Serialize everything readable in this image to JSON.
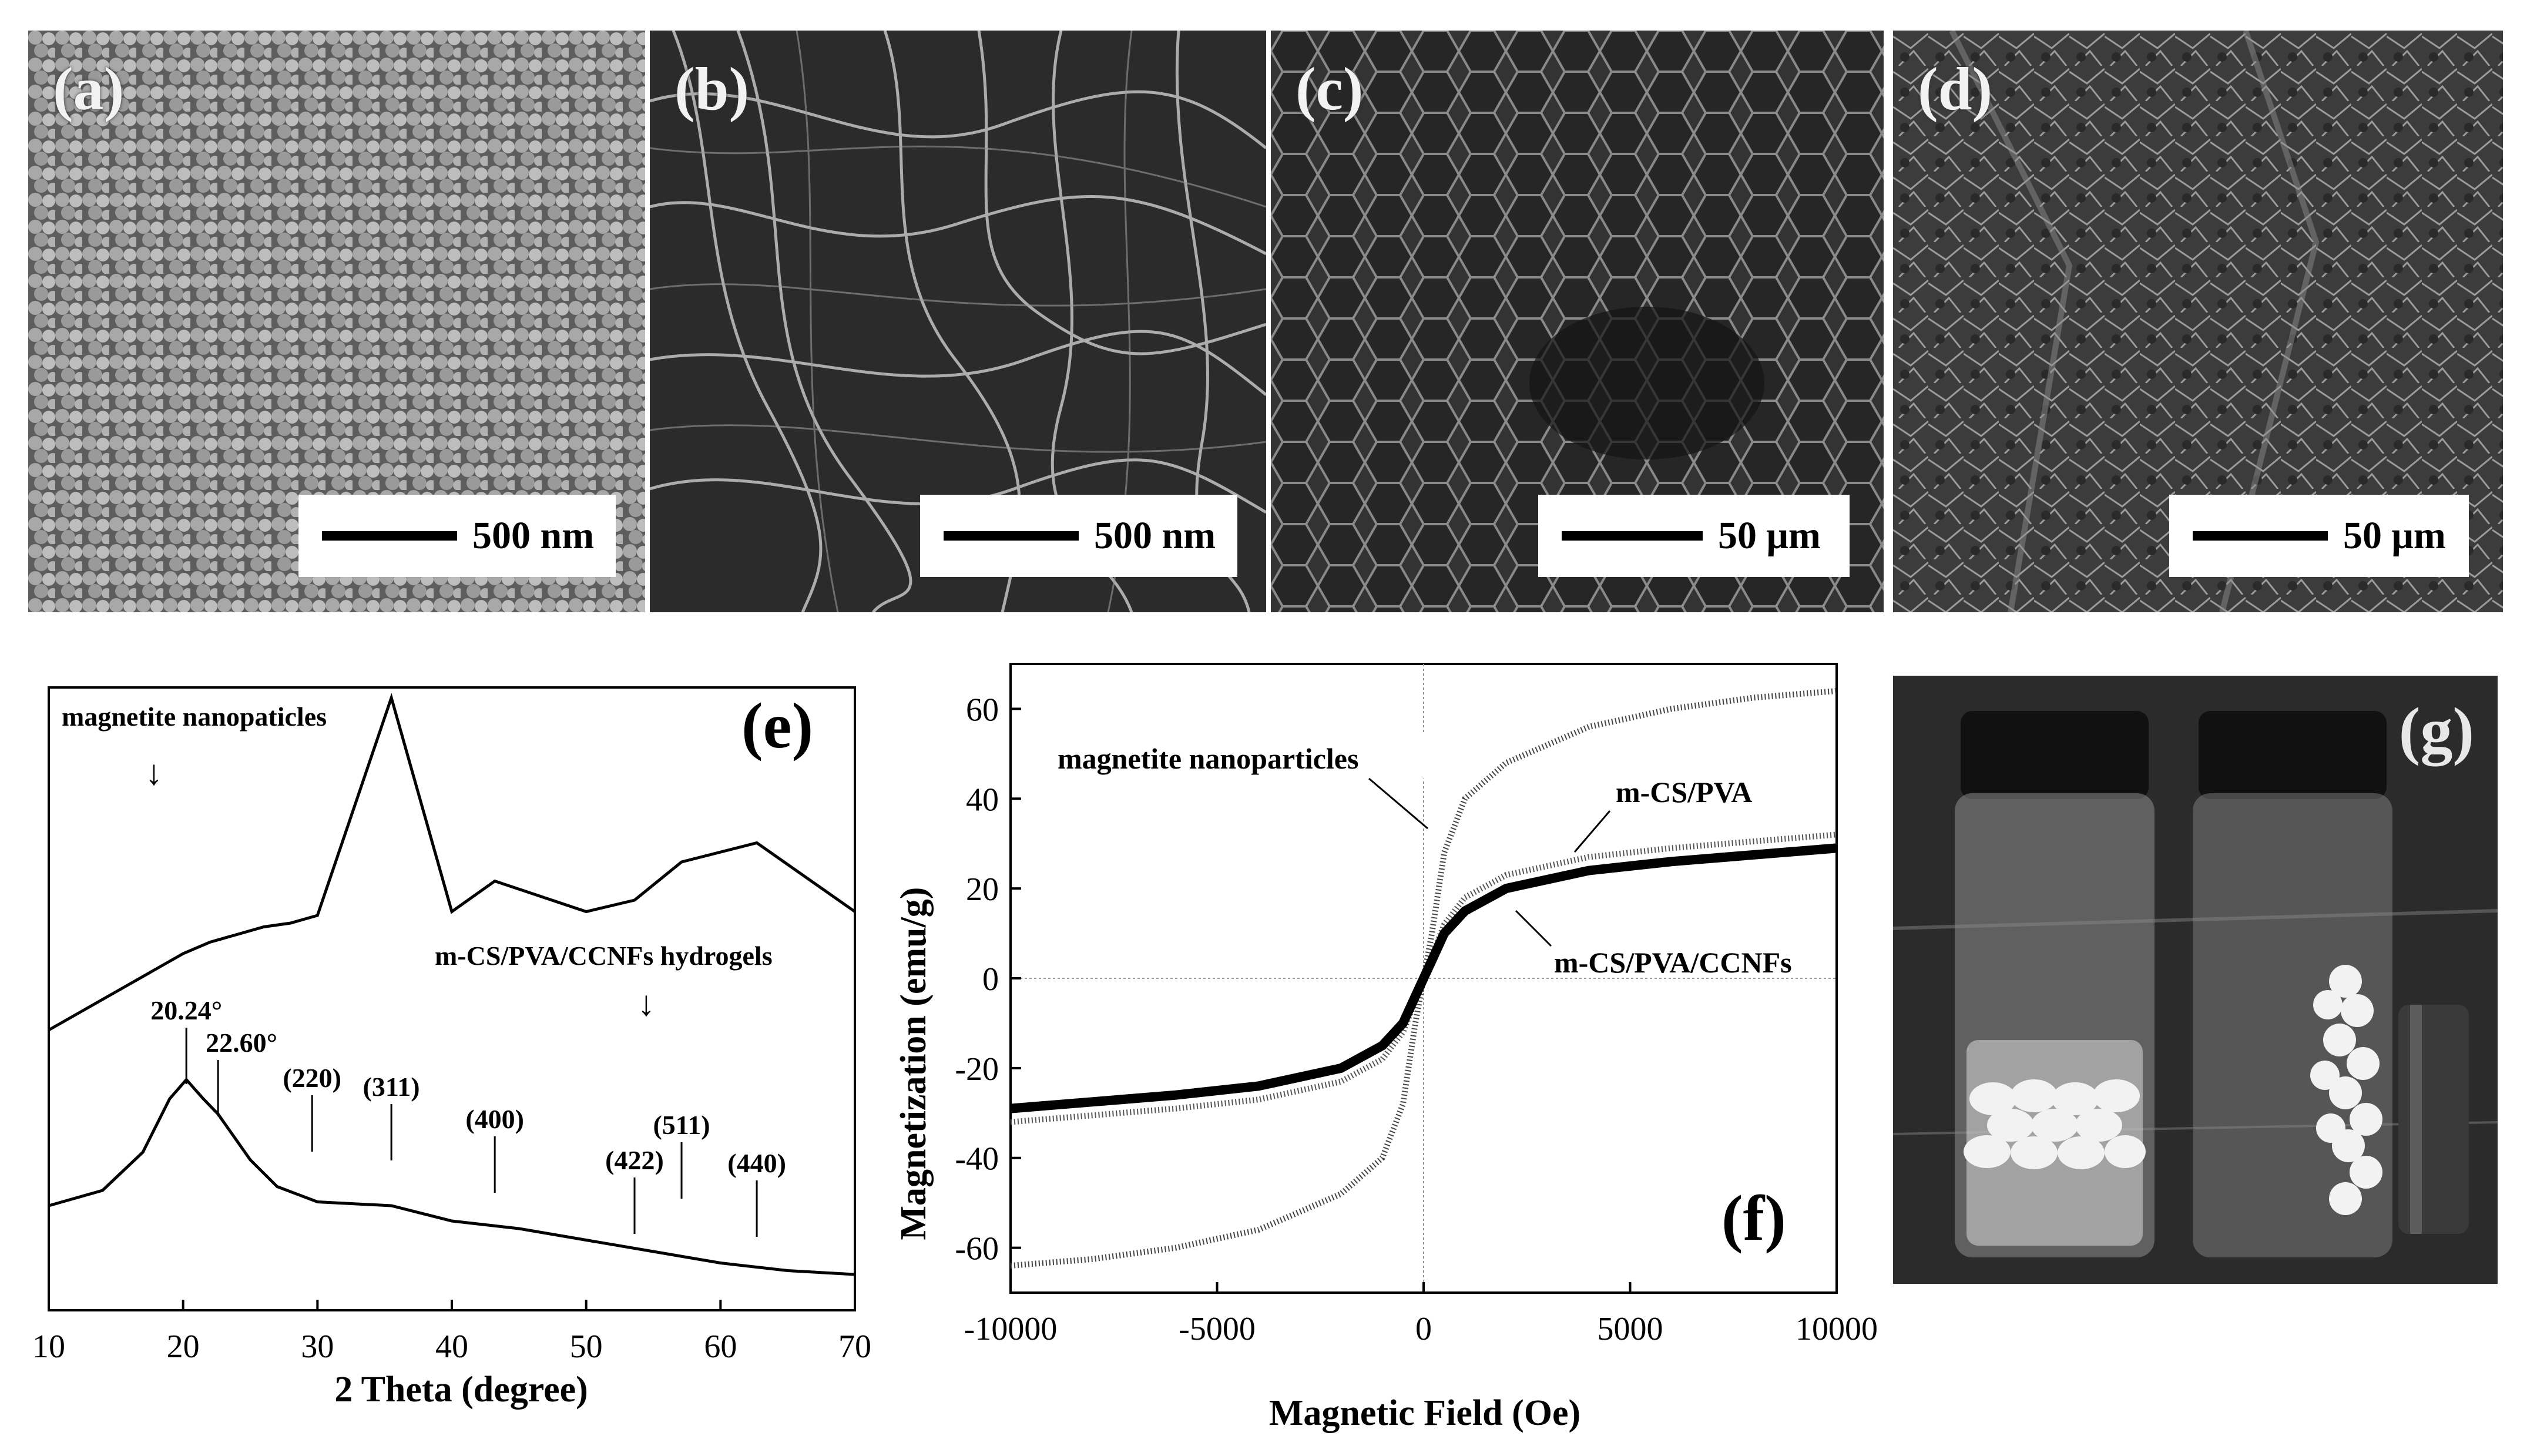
{
  "panels": {
    "a": {
      "label": "(a)",
      "scale": "500 nm"
    },
    "b": {
      "label": "(b)",
      "scale": "500 nm"
    },
    "c": {
      "label": "(c)",
      "scale": "50 μm"
    },
    "d": {
      "label": "(d)",
      "scale": "50 μm"
    },
    "g": {
      "label": "(g)"
    }
  },
  "chart_data": [
    {
      "panel": "(e)",
      "type": "line",
      "xlabel": "2 Theta (degree)",
      "ylabel": "",
      "xlim": [
        10,
        70
      ],
      "xticks": [
        "10",
        "20",
        "30",
        "40",
        "50",
        "60",
        "70"
      ],
      "series": [
        {
          "name": "magnetite nanopaticles",
          "x": [
            10,
            12,
            14,
            16,
            18,
            20,
            22,
            24,
            26,
            28,
            30,
            35.5,
            40,
            43.2,
            50,
            53.6,
            57.1,
            62.7,
            70
          ],
          "y": [
            0.58,
            0.62,
            0.66,
            0.7,
            0.74,
            0.78,
            0.81,
            0.83,
            0.85,
            0.86,
            0.88,
            1.45,
            0.89,
            0.97,
            0.89,
            0.92,
            1.02,
            1.07,
            0.89
          ]
        },
        {
          "name": "m-CS/PVA/CCNFs hydrogels",
          "x": [
            10,
            14,
            17,
            19,
            20.24,
            21.5,
            22.6,
            25,
            27,
            30,
            35.5,
            40,
            45,
            50,
            55,
            60,
            65,
            70
          ],
          "y": [
            0.12,
            0.16,
            0.26,
            0.4,
            0.45,
            0.4,
            0.36,
            0.24,
            0.17,
            0.13,
            0.12,
            0.08,
            0.06,
            0.03,
            0.0,
            -0.03,
            -0.05,
            -0.06
          ]
        }
      ],
      "annotations": [
        "20.24°",
        "22.60°",
        "(220)",
        "(311)",
        "(400)",
        "(422)",
        "(511)",
        "(440)"
      ]
    },
    {
      "panel": "(f)",
      "type": "line",
      "xlabel": "Magnetic Field (Oe)",
      "ylabel": "Magnetization (emu/g)",
      "xlim": [
        -10000,
        10000
      ],
      "ylim": [
        -70,
        70
      ],
      "xticks": [
        "-10000",
        "-5000",
        "0",
        "5000",
        "10000"
      ],
      "yticks": [
        "60",
        "40",
        "20",
        "0",
        "-20",
        "-40",
        "-60"
      ],
      "series": [
        {
          "name": "magnetite nanoparticles",
          "x": [
            -10000,
            -8000,
            -6000,
            -4000,
            -2000,
            -1000,
            -500,
            -200,
            0,
            200,
            500,
            1000,
            2000,
            4000,
            6000,
            8000,
            10000
          ],
          "y": [
            -64,
            -62.5,
            -60,
            -56,
            -48,
            -40,
            -28,
            -10,
            0,
            10,
            28,
            40,
            48,
            56,
            60,
            62.5,
            64
          ]
        },
        {
          "name": "m-CS/PVA",
          "x": [
            -10000,
            -8000,
            -6000,
            -4000,
            -2000,
            -1000,
            -500,
            -200,
            0,
            200,
            500,
            1000,
            2000,
            4000,
            6000,
            8000,
            10000
          ],
          "y": [
            -32,
            -30.5,
            -29,
            -27,
            -23,
            -18,
            -12,
            -5,
            0,
            5,
            12,
            18,
            23,
            27,
            29,
            30.5,
            32
          ]
        },
        {
          "name": "m-CS/PVA/CCNFs",
          "x": [
            -10000,
            -8000,
            -6000,
            -4000,
            -2000,
            -1000,
            -500,
            -200,
            0,
            200,
            500,
            1000,
            2000,
            4000,
            6000,
            8000,
            10000
          ],
          "y": [
            -29,
            -27.5,
            -26,
            -24,
            -20,
            -15,
            -10,
            -4,
            0,
            4,
            10,
            15,
            20,
            24,
            26,
            27.5,
            29
          ]
        }
      ]
    }
  ]
}
